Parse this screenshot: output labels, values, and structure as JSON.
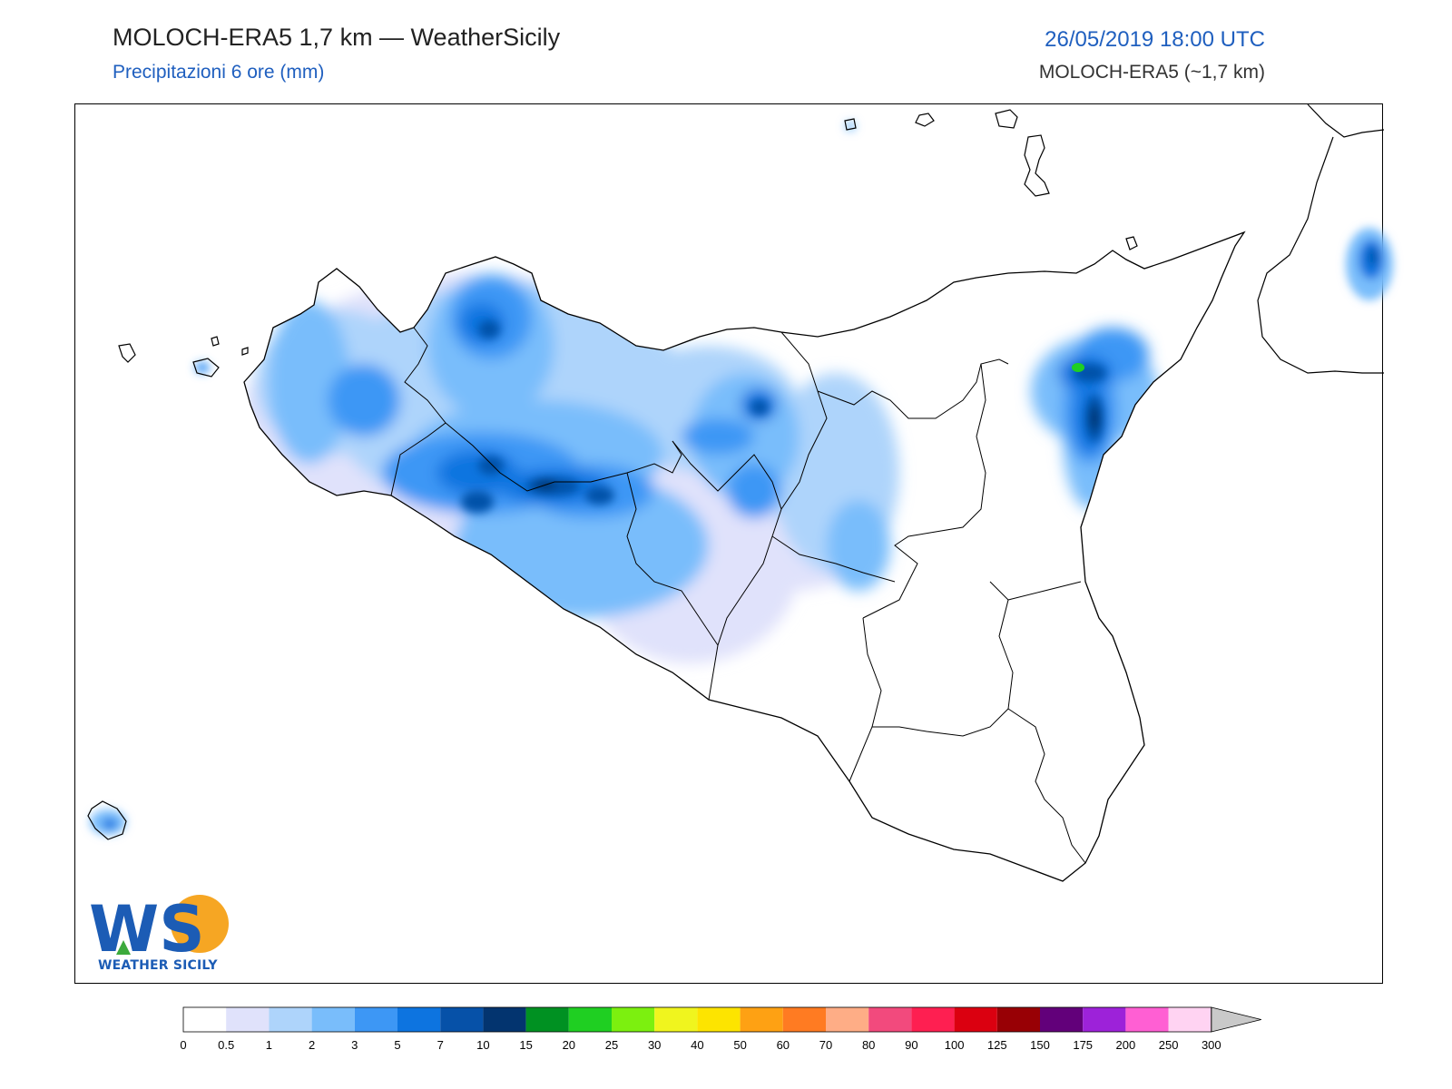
{
  "header": {
    "title": "MOLOCH-ERA5 1,7 km — WeatherSicily",
    "subtitle": "Precipitazioni 6 ore (mm)",
    "datetime": "26/05/2019 18:00 UTC",
    "model": "MOLOCH-ERA5 (~1,7 km)"
  },
  "logo": {
    "letters": "WS",
    "caption": "WEATHER SICILY"
  },
  "legend": {
    "ticks": [
      "0",
      "0.5",
      "1",
      "2",
      "3",
      "5",
      "7",
      "10",
      "15",
      "20",
      "25",
      "30",
      "40",
      "50",
      "60",
      "70",
      "80",
      "90",
      "100",
      "125",
      "150",
      "175",
      "200",
      "250",
      "300"
    ],
    "colors": [
      "#ffffff",
      "#e0e2fb",
      "#aed4fb",
      "#79bdfb",
      "#3d97f5",
      "#0d74e0",
      "#0651a8",
      "#03346f",
      "#009122",
      "#1fcf22",
      "#7cf00f",
      "#f0f51e",
      "#fde400",
      "#fea113",
      "#ff7b22",
      "#fead86",
      "#f24a7d",
      "#fe1f51",
      "#db0010",
      "#980005",
      "#62007a",
      "#9d22d9",
      "#ff5fd3",
      "#ffd3f2"
    ],
    "overflow_color": "#c9c9c9"
  },
  "colors": {
    "title": "#222222",
    "accent_blue": "#1f5fbf",
    "land_outline": "#000000"
  }
}
